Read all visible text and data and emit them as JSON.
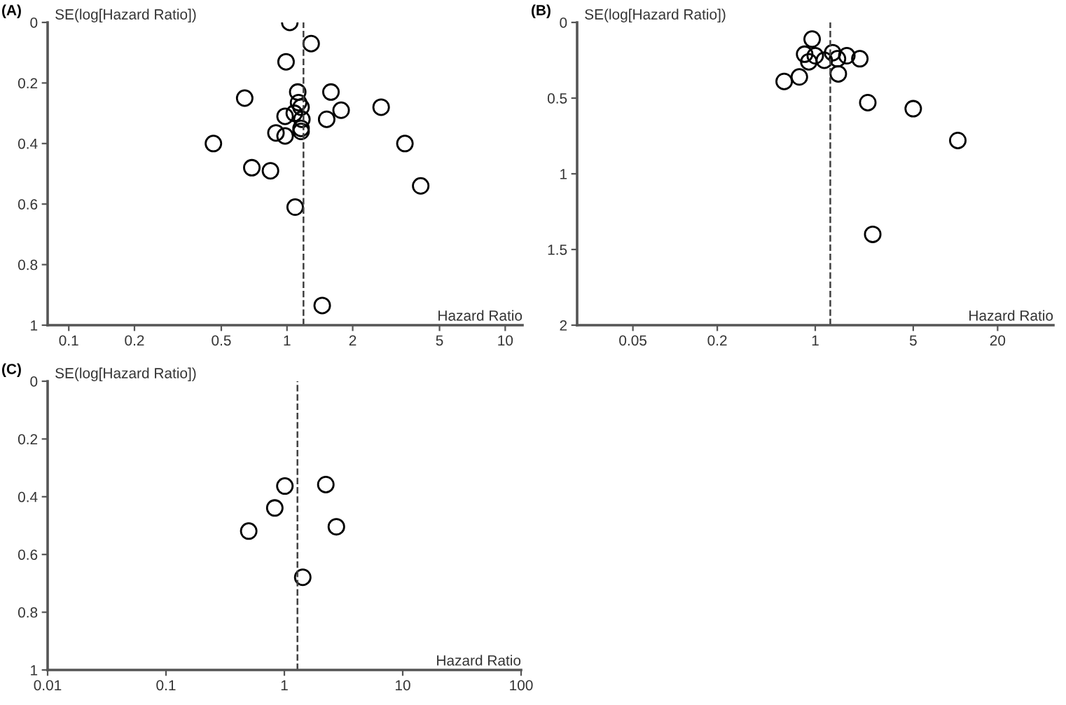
{
  "chart_data": [
    {
      "type": "scatter",
      "title": "(A)",
      "ylabel": "SE(log[Hazard Ratio])",
      "xlabel": "Hazard Ratio",
      "log": "x",
      "marker": "circle",
      "grid": false,
      "series": [
        {
          "color": "#000000",
          "x": [
            1.03,
            1.29,
            0.99,
            1.12,
            1.59,
            0.64,
            1.13,
            1.16,
            2.7,
            1.77,
            1.08,
            0.98,
            1.17,
            1.52,
            1.16,
            1.16,
            0.89,
            0.98,
            0.46,
            3.47,
            0.69,
            0.84,
            4.1,
            1.09,
            1.45
          ],
          "values": [
            0.0,
            0.07,
            0.13,
            0.23,
            0.23,
            0.25,
            0.265,
            0.28,
            0.28,
            0.29,
            0.3,
            0.31,
            0.32,
            0.32,
            0.35,
            0.36,
            0.365,
            0.375,
            0.4,
            0.4,
            0.48,
            0.49,
            0.54,
            0.61,
            0.935
          ]
        }
      ],
      "xlim": [
        0.08,
        12
      ],
      "ylim": [
        1,
        0
      ],
      "xticks": [
        0.1,
        0.2,
        0.5,
        1,
        2,
        5,
        10
      ],
      "yticks": [
        0,
        0.2,
        0.4,
        0.6,
        0.8,
        1
      ],
      "ref_lines": [
        {
          "axis": "x",
          "value": 1.19,
          "line_style": "dashed",
          "color": "#404040"
        }
      ]
    },
    {
      "type": "scatter",
      "title": "(B)",
      "ylabel": "SE(log[Hazard Ratio])",
      "xlabel": "Hazard Ratio",
      "log": "x",
      "marker": "circle",
      "grid": false,
      "series": [
        {
          "color": "#000000",
          "x": [
            0.95,
            0.84,
            1.0,
            1.33,
            1.68,
            1.44,
            2.08,
            0.9,
            1.16,
            1.46,
            0.77,
            0.6,
            2.37,
            5.0,
            10.4,
            2.57
          ],
          "values": [
            0.11,
            0.21,
            0.22,
            0.2,
            0.22,
            0.24,
            0.24,
            0.26,
            0.25,
            0.34,
            0.36,
            0.39,
            0.53,
            0.57,
            0.78,
            1.4
          ]
        }
      ],
      "xlim": [
        0.02,
        50
      ],
      "ylim": [
        2,
        0
      ],
      "xticks": [
        0.05,
        0.2,
        1,
        5,
        20
      ],
      "yticks": [
        0,
        0.5,
        1,
        1.5,
        2
      ],
      "ref_lines": [
        {
          "axis": "x",
          "value": 1.28,
          "line_style": "dashed",
          "color": "#404040"
        }
      ]
    },
    {
      "type": "scatter",
      "title": "(C)",
      "ylabel": "SE(log[Hazard Ratio])",
      "xlabel": "Hazard Ratio",
      "log": "x",
      "marker": "circle",
      "grid": false,
      "series": [
        {
          "color": "#000000",
          "x": [
            1.01,
            2.24,
            0.83,
            0.5,
            2.75,
            1.43
          ],
          "values": [
            0.363,
            0.358,
            0.439,
            0.519,
            0.504,
            0.679
          ]
        }
      ],
      "xlim": [
        0.01,
        100
      ],
      "ylim": [
        1,
        0
      ],
      "xticks": [
        0.01,
        0.1,
        1,
        10,
        100
      ],
      "yticks": [
        0,
        0.2,
        0.4,
        0.6,
        0.8,
        1
      ],
      "ref_lines": [
        {
          "axis": "x",
          "value": 1.29,
          "line_style": "dashed",
          "color": "#404040"
        }
      ]
    }
  ]
}
